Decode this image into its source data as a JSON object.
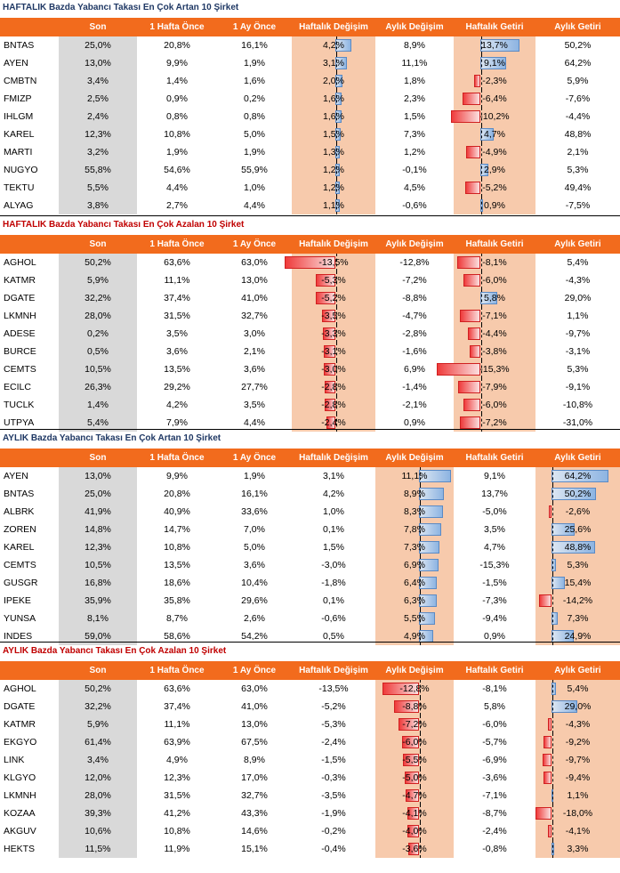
{
  "colors": {
    "header": "#f26b1d",
    "son_bg": "#d9d9d9",
    "highlight_bg": "#f7caac",
    "positive_bar": "#8db4e2",
    "negative_bar": "#ef3b3b",
    "title_blue": "#1f3864",
    "title_red": "#c00000"
  },
  "columns": [
    "",
    "Son",
    "1 Hafta Önce",
    "1 Ay Önce",
    "Haftalık Değişim",
    "Aylık Değişim",
    "Haftalık Getiri",
    "Aylık Getiri"
  ],
  "sections": [
    {
      "title": "HAFTALIK Bazda Yabancı Takası En Çok Artan 10 Şirket",
      "title_color": "#1f3864",
      "highlight": [
        "weekly_change",
        "weekly_return"
      ],
      "rows": [
        {
          "name": "BNTAS",
          "son": "25,0%",
          "week": "20,8%",
          "month": "16,1%",
          "wchg": "4,2%",
          "mchg": "8,9%",
          "wret": "13,7%",
          "mret": "50,2%"
        },
        {
          "name": "AYEN",
          "son": "13,0%",
          "week": "9,9%",
          "month": "1,9%",
          "wchg": "3,1%",
          "mchg": "11,1%",
          "wret": "9,1%",
          "mret": "64,2%"
        },
        {
          "name": "CMBTN",
          "son": "3,4%",
          "week": "1,4%",
          "month": "1,6%",
          "wchg": "2,0%",
          "mchg": "1,8%",
          "wret": "-2,3%",
          "mret": "5,9%"
        },
        {
          "name": "FMIZP",
          "son": "2,5%",
          "week": "0,9%",
          "month": "0,2%",
          "wchg": "1,6%",
          "mchg": "2,3%",
          "wret": "-6,4%",
          "mret": "-7,6%"
        },
        {
          "name": "IHLGM",
          "son": "2,4%",
          "week": "0,8%",
          "month": "0,8%",
          "wchg": "1,6%",
          "mchg": "1,5%",
          "wret": "-10,2%",
          "mret": "-4,4%"
        },
        {
          "name": "KAREL",
          "son": "12,3%",
          "week": "10,8%",
          "month": "5,0%",
          "wchg": "1,5%",
          "mchg": "7,3%",
          "wret": "4,7%",
          "mret": "48,8%"
        },
        {
          "name": "MARTI",
          "son": "3,2%",
          "week": "1,9%",
          "month": "1,9%",
          "wchg": "1,3%",
          "mchg": "1,2%",
          "wret": "-4,9%",
          "mret": "2,1%"
        },
        {
          "name": "NUGYO",
          "son": "55,8%",
          "week": "54,6%",
          "month": "55,9%",
          "wchg": "1,2%",
          "mchg": "-0,1%",
          "wret": "2,9%",
          "mret": "5,3%"
        },
        {
          "name": "TEKTU",
          "son": "5,5%",
          "week": "4,4%",
          "month": "1,0%",
          "wchg": "1,2%",
          "mchg": "4,5%",
          "wret": "-5,2%",
          "mret": "49,4%"
        },
        {
          "name": "ALYAG",
          "son": "3,8%",
          "week": "2,7%",
          "month": "4,4%",
          "wchg": "1,1%",
          "mchg": "-0,6%",
          "wret": "0,9%",
          "mret": "-7,5%"
        }
      ]
    },
    {
      "title": "HAFTALIK Bazda Yabancı Takası En Çok Azalan 10 Şirket",
      "title_color": "#c00000",
      "highlight": [
        "weekly_change",
        "weekly_return"
      ],
      "rows": [
        {
          "name": "AGHOL",
          "son": "50,2%",
          "week": "63,6%",
          "month": "63,0%",
          "wchg": "-13,5%",
          "mchg": "-12,8%",
          "wret": "-8,1%",
          "mret": "5,4%"
        },
        {
          "name": "KATMR",
          "son": "5,9%",
          "week": "11,1%",
          "month": "13,0%",
          "wchg": "-5,3%",
          "mchg": "-7,2%",
          "wret": "-6,0%",
          "mret": "-4,3%"
        },
        {
          "name": "DGATE",
          "son": "32,2%",
          "week": "37,4%",
          "month": "41,0%",
          "wchg": "-5,2%",
          "mchg": "-8,8%",
          "wret": "5,8%",
          "mret": "29,0%"
        },
        {
          "name": "LKMNH",
          "son": "28,0%",
          "week": "31,5%",
          "month": "32,7%",
          "wchg": "-3,5%",
          "mchg": "-4,7%",
          "wret": "-7,1%",
          "mret": "1,1%"
        },
        {
          "name": "ADESE",
          "son": "0,2%",
          "week": "3,5%",
          "month": "3,0%",
          "wchg": "-3,3%",
          "mchg": "-2,8%",
          "wret": "-4,4%",
          "mret": "-9,7%"
        },
        {
          "name": "BURCE",
          "son": "0,5%",
          "week": "3,6%",
          "month": "2,1%",
          "wchg": "-3,1%",
          "mchg": "-1,6%",
          "wret": "-3,8%",
          "mret": "-3,1%"
        },
        {
          "name": "CEMTS",
          "son": "10,5%",
          "week": "13,5%",
          "month": "3,6%",
          "wchg": "-3,0%",
          "mchg": "6,9%",
          "wret": "-15,3%",
          "mret": "5,3%"
        },
        {
          "name": "ECILC",
          "son": "26,3%",
          "week": "29,2%",
          "month": "27,7%",
          "wchg": "-2,8%",
          "mchg": "-1,4%",
          "wret": "-7,9%",
          "mret": "-9,1%"
        },
        {
          "name": "TUCLK",
          "son": "1,4%",
          "week": "4,2%",
          "month": "3,5%",
          "wchg": "-2,8%",
          "mchg": "-2,1%",
          "wret": "-6,0%",
          "mret": "-10,8%"
        },
        {
          "name": "UTPYA",
          "son": "5,4%",
          "week": "7,9%",
          "month": "4,4%",
          "wchg": "-2,4%",
          "mchg": "0,9%",
          "wret": "-7,2%",
          "mret": "-31,0%"
        }
      ]
    },
    {
      "title": "AYLIK Bazda Yabancı Takası En Çok Artan 10 Şirket",
      "title_color": "#1f3864",
      "highlight": [
        "monthly_change",
        "monthly_return"
      ],
      "rows": [
        {
          "name": "AYEN",
          "son": "13,0%",
          "week": "9,9%",
          "month": "1,9%",
          "wchg": "3,1%",
          "mchg": "11,1%",
          "wret": "9,1%",
          "mret": "64,2%"
        },
        {
          "name": "BNTAS",
          "son": "25,0%",
          "week": "20,8%",
          "month": "16,1%",
          "wchg": "4,2%",
          "mchg": "8,9%",
          "wret": "13,7%",
          "mret": "50,2%"
        },
        {
          "name": "ALBRK",
          "son": "41,9%",
          "week": "40,9%",
          "month": "33,6%",
          "wchg": "1,0%",
          "mchg": "8,3%",
          "wret": "-5,0%",
          "mret": "-2,6%"
        },
        {
          "name": "ZOREN",
          "son": "14,8%",
          "week": "14,7%",
          "month": "7,0%",
          "wchg": "0,1%",
          "mchg": "7,8%",
          "wret": "3,5%",
          "mret": "25,6%"
        },
        {
          "name": "KAREL",
          "son": "12,3%",
          "week": "10,8%",
          "month": "5,0%",
          "wchg": "1,5%",
          "mchg": "7,3%",
          "wret": "4,7%",
          "mret": "48,8%"
        },
        {
          "name": "CEMTS",
          "son": "10,5%",
          "week": "13,5%",
          "month": "3,6%",
          "wchg": "-3,0%",
          "mchg": "6,9%",
          "wret": "-15,3%",
          "mret": "5,3%"
        },
        {
          "name": "GUSGR",
          "son": "16,8%",
          "week": "18,6%",
          "month": "10,4%",
          "wchg": "-1,8%",
          "mchg": "6,4%",
          "wret": "-1,5%",
          "mret": "15,4%"
        },
        {
          "name": "IPEKE",
          "son": "35,9%",
          "week": "35,8%",
          "month": "29,6%",
          "wchg": "0,1%",
          "mchg": "6,3%",
          "wret": "-7,3%",
          "mret": "-14,2%"
        },
        {
          "name": "YUNSA",
          "son": "8,1%",
          "week": "8,7%",
          "month": "2,6%",
          "wchg": "-0,6%",
          "mchg": "5,5%",
          "wret": "-9,4%",
          "mret": "7,3%"
        },
        {
          "name": "INDES",
          "son": "59,0%",
          "week": "58,6%",
          "month": "54,2%",
          "wchg": "0,5%",
          "mchg": "4,9%",
          "wret": "0,9%",
          "mret": "24,9%"
        }
      ]
    },
    {
      "title": "AYLIK Bazda Yabancı Takası En Çok Azalan 10 Şirket",
      "title_color": "#c00000",
      "highlight": [
        "monthly_change",
        "monthly_return"
      ],
      "rows": [
        {
          "name": "AGHOL",
          "son": "50,2%",
          "week": "63,6%",
          "month": "63,0%",
          "wchg": "-13,5%",
          "mchg": "-12,8%",
          "wret": "-8,1%",
          "mret": "5,4%"
        },
        {
          "name": "DGATE",
          "son": "32,2%",
          "week": "37,4%",
          "month": "41,0%",
          "wchg": "-5,2%",
          "mchg": "-8,8%",
          "wret": "5,8%",
          "mret": "29,0%"
        },
        {
          "name": "KATMR",
          "son": "5,9%",
          "week": "11,1%",
          "month": "13,0%",
          "wchg": "-5,3%",
          "mchg": "-7,2%",
          "wret": "-6,0%",
          "mret": "-4,3%"
        },
        {
          "name": "EKGYO",
          "son": "61,4%",
          "week": "63,9%",
          "month": "67,5%",
          "wchg": "-2,4%",
          "mchg": "-6,0%",
          "wret": "-5,7%",
          "mret": "-9,2%"
        },
        {
          "name": "LINK",
          "son": "3,4%",
          "week": "4,9%",
          "month": "8,9%",
          "wchg": "-1,5%",
          "mchg": "-5,5%",
          "wret": "-6,9%",
          "mret": "-9,7%"
        },
        {
          "name": "KLGYO",
          "son": "12,0%",
          "week": "12,3%",
          "month": "17,0%",
          "wchg": "-0,3%",
          "mchg": "-5,0%",
          "wret": "-3,6%",
          "mret": "-9,4%"
        },
        {
          "name": "LKMNH",
          "son": "28,0%",
          "week": "31,5%",
          "month": "32,7%",
          "wchg": "-3,5%",
          "mchg": "-4,7%",
          "wret": "-7,1%",
          "mret": "1,1%"
        },
        {
          "name": "KOZAA",
          "son": "39,3%",
          "week": "41,2%",
          "month": "43,3%",
          "wchg": "-1,9%",
          "mchg": "-4,1%",
          "wret": "-8,7%",
          "mret": "-18,0%"
        },
        {
          "name": "AKGUV",
          "son": "10,6%",
          "week": "10,8%",
          "month": "14,6%",
          "wchg": "-0,2%",
          "mchg": "-4,0%",
          "wret": "-2,4%",
          "mret": "-4,1%"
        },
        {
          "name": "HEKTS",
          "son": "11,5%",
          "week": "11,9%",
          "month": "15,1%",
          "wchg": "-0,4%",
          "mchg": "-3,6%",
          "wret": "-0,8%",
          "mret": "3,3%"
        }
      ]
    }
  ]
}
